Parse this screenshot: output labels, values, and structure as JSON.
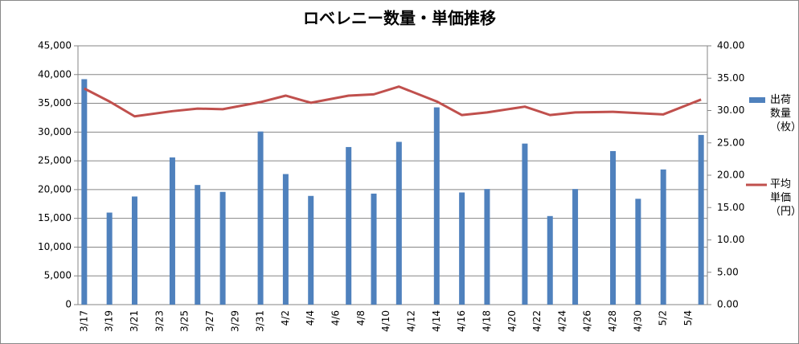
{
  "chart_data": {
    "type": "bar_line",
    "title": "ロベレニー数量・単価推移",
    "categories": [
      "3/17",
      null,
      "3/19",
      null,
      "3/21",
      null,
      "3/23",
      null,
      "3/25",
      null,
      "3/27",
      null,
      "3/29",
      null,
      "3/31",
      null,
      "4/2",
      null,
      "4/4",
      null,
      "4/6",
      null,
      "4/8",
      null,
      "4/10",
      null,
      "4/12",
      null,
      "4/14",
      null,
      "4/16",
      null,
      "4/18",
      null,
      "4/20",
      null,
      "4/22",
      null,
      "4/24",
      null,
      "4/26",
      null,
      "4/28",
      null,
      "4/30",
      null,
      "5/2",
      null,
      "5/4",
      null
    ],
    "series": [
      {
        "name": "出荷数量（枚）",
        "type": "bar",
        "color": "#4f81bd",
        "values": [
          39200,
          null,
          16000,
          null,
          18800,
          null,
          null,
          25600,
          null,
          20800,
          null,
          19600,
          null,
          null,
          30100,
          null,
          22700,
          null,
          18900,
          null,
          null,
          27400,
          null,
          19300,
          null,
          28300,
          null,
          null,
          34300,
          null,
          19500,
          null,
          20100,
          null,
          null,
          28000,
          null,
          15400,
          null,
          20100,
          null,
          null,
          26700,
          null,
          18400,
          null,
          23500,
          null,
          null,
          29500
        ]
      },
      {
        "name": "平均単価（円）",
        "type": "line",
        "axis": "y2",
        "color": "#c0504d",
        "values": [
          33.4,
          null,
          31.4,
          null,
          29.1,
          null,
          null,
          29.9,
          null,
          30.3,
          null,
          30.2,
          null,
          null,
          31.3,
          null,
          32.3,
          null,
          31.2,
          null,
          null,
          32.3,
          null,
          32.5,
          null,
          33.7,
          null,
          null,
          31.4,
          null,
          29.3,
          null,
          29.7,
          null,
          null,
          30.6,
          null,
          29.3,
          null,
          29.7,
          null,
          null,
          29.8,
          null,
          29.6,
          null,
          29.4,
          null,
          null,
          31.7
        ]
      }
    ],
    "line_connects_gaps": true,
    "ylim": [
      0,
      45000
    ],
    "yticks": [
      0,
      {
        "value": 5000,
        "label": "5,000"
      },
      {
        "value": 10000,
        "label": "10,000"
      },
      {
        "value": 15000,
        "label": "15,000"
      },
      {
        "value": 20000,
        "label": "20,000"
      },
      {
        "value": 25000,
        "label": "25,000"
      },
      {
        "value": 30000,
        "label": "30,000"
      },
      {
        "value": 35000,
        "label": "35,000"
      },
      {
        "value": 40000,
        "label": "40,000"
      },
      {
        "value": 45000,
        "label": "45,000"
      }
    ],
    "y2lim": [
      0,
      40
    ],
    "y2ticks": [
      {
        "value": 0,
        "label": "0.00"
      },
      {
        "value": 5,
        "label": "5.00"
      },
      {
        "value": 10,
        "label": "10.00"
      },
      {
        "value": 15,
        "label": "15.00"
      },
      {
        "value": 20,
        "label": "20.00"
      },
      {
        "value": 25,
        "label": "25.00"
      },
      {
        "value": 30,
        "label": "30.00"
      },
      {
        "value": 35,
        "label": "35.00"
      },
      {
        "value": 40,
        "label": "40.00"
      }
    ],
    "grid": true,
    "legend": "right"
  }
}
